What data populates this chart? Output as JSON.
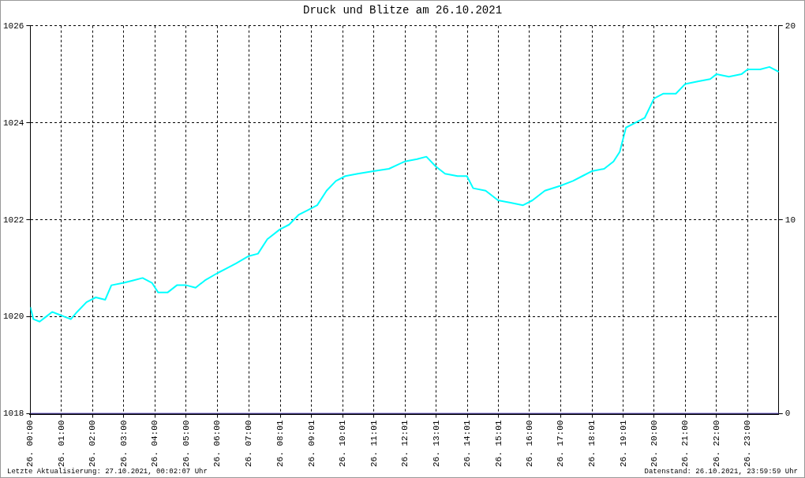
{
  "chart_data": {
    "type": "line",
    "title": "Druck und Blitze am 26.10.2021",
    "xlim": [
      "2021-10-26T00:00",
      "2021-10-27T00:00"
    ],
    "xticks": [
      {
        "value": "2021-10-26T00:00",
        "label": "26. 00:00"
      },
      {
        "value": "2021-10-26T01:00",
        "label": "26. 01:00"
      },
      {
        "value": "2021-10-26T02:00",
        "label": "26. 02:00"
      },
      {
        "value": "2021-10-26T03:00",
        "label": "26. 03:00"
      },
      {
        "value": "2021-10-26T04:00",
        "label": "26. 04:00"
      },
      {
        "value": "2021-10-26T05:00",
        "label": "26. 05:00"
      },
      {
        "value": "2021-10-26T06:00",
        "label": "26. 06:00"
      },
      {
        "value": "2021-10-26T07:00",
        "label": "26. 07:00"
      },
      {
        "value": "2021-10-26T08:01",
        "label": "26. 08:01"
      },
      {
        "value": "2021-10-26T09:01",
        "label": "26. 09:01"
      },
      {
        "value": "2021-10-26T10:01",
        "label": "26. 10:01"
      },
      {
        "value": "2021-10-26T11:01",
        "label": "26. 11:01"
      },
      {
        "value": "2021-10-26T12:01",
        "label": "26. 12:01"
      },
      {
        "value": "2021-10-26T13:01",
        "label": "26. 13:01"
      },
      {
        "value": "2021-10-26T14:01",
        "label": "26. 14:01"
      },
      {
        "value": "2021-10-26T15:01",
        "label": "26. 15:01"
      },
      {
        "value": "2021-10-26T16:00",
        "label": "26. 16:00"
      },
      {
        "value": "2021-10-26T17:00",
        "label": "26. 17:00"
      },
      {
        "value": "2021-10-26T18:01",
        "label": "26. 18:01"
      },
      {
        "value": "2021-10-26T19:01",
        "label": "26. 19:01"
      },
      {
        "value": "2021-10-26T20:00",
        "label": "26. 20:00"
      },
      {
        "value": "2021-10-26T21:00",
        "label": "26. 21:00"
      },
      {
        "value": "2021-10-26T22:00",
        "label": "26. 22:00"
      },
      {
        "value": "2021-10-26T23:00",
        "label": "26. 23:00"
      }
    ],
    "ylim": [
      1018,
      1026
    ],
    "yticks": [
      1018,
      1020,
      1022,
      1024,
      1026
    ],
    "y2lim": [
      0,
      20
    ],
    "y2ticks": [
      0,
      10,
      20
    ],
    "grid": true,
    "legend": false,
    "marker": "none",
    "line_style": "solid",
    "series": [
      {
        "color": "#00ffff",
        "x": [
          "2021-10-26T00:00",
          "2021-10-26T00:06",
          "2021-10-26T00:18",
          "2021-10-26T00:30",
          "2021-10-26T00:42",
          "2021-10-26T00:54",
          "2021-10-26T01:06",
          "2021-10-26T01:18",
          "2021-10-26T01:30",
          "2021-10-26T01:48",
          "2021-10-26T02:06",
          "2021-10-26T02:24",
          "2021-10-26T02:36",
          "2021-10-26T03:00",
          "2021-10-26T03:18",
          "2021-10-26T03:36",
          "2021-10-26T03:54",
          "2021-10-26T04:06",
          "2021-10-26T04:24",
          "2021-10-26T04:42",
          "2021-10-26T05:00",
          "2021-10-26T05:18",
          "2021-10-26T05:36",
          "2021-10-26T06:00",
          "2021-10-26T06:18",
          "2021-10-26T06:36",
          "2021-10-26T07:00",
          "2021-10-26T07:18",
          "2021-10-26T07:36",
          "2021-10-26T08:00",
          "2021-10-26T08:18",
          "2021-10-26T08:36",
          "2021-10-26T08:54",
          "2021-10-26T09:12",
          "2021-10-26T09:30",
          "2021-10-26T09:48",
          "2021-10-26T10:06",
          "2021-10-26T10:30",
          "2021-10-26T11:00",
          "2021-10-26T11:30",
          "2021-10-26T12:00",
          "2021-10-26T12:24",
          "2021-10-26T12:42",
          "2021-10-26T13:00",
          "2021-10-26T13:18",
          "2021-10-26T13:42",
          "2021-10-26T14:00",
          "2021-10-26T14:12",
          "2021-10-26T14:36",
          "2021-10-26T15:00",
          "2021-10-26T15:24",
          "2021-10-26T15:48",
          "2021-10-26T16:06",
          "2021-10-26T16:30",
          "2021-10-26T17:00",
          "2021-10-26T17:24",
          "2021-10-26T17:42",
          "2021-10-26T18:00",
          "2021-10-26T18:24",
          "2021-10-26T18:42",
          "2021-10-26T18:54",
          "2021-10-26T19:06",
          "2021-10-26T19:24",
          "2021-10-26T19:42",
          "2021-10-26T20:00",
          "2021-10-26T20:18",
          "2021-10-26T20:42",
          "2021-10-26T21:00",
          "2021-10-26T21:24",
          "2021-10-26T21:48",
          "2021-10-26T22:00",
          "2021-10-26T22:24",
          "2021-10-26T22:48",
          "2021-10-26T23:00",
          "2021-10-26T23:24",
          "2021-10-26T23:42",
          "2021-10-27T00:00"
        ],
        "values": [
          1020.2,
          1019.95,
          1019.9,
          1020.0,
          1020.1,
          1020.05,
          1020.0,
          1019.95,
          1020.1,
          1020.3,
          1020.4,
          1020.35,
          1020.65,
          1020.7,
          1020.75,
          1020.8,
          1020.7,
          1020.5,
          1020.5,
          1020.65,
          1020.65,
          1020.6,
          1020.75,
          1020.9,
          1021.0,
          1021.1,
          1021.25,
          1021.3,
          1021.6,
          1021.8,
          1021.9,
          1022.1,
          1022.2,
          1022.3,
          1022.6,
          1022.8,
          1022.9,
          1022.95,
          1023.0,
          1023.05,
          1023.2,
          1023.25,
          1023.3,
          1023.1,
          1022.95,
          1022.9,
          1022.9,
          1022.65,
          1022.6,
          1022.4,
          1022.35,
          1022.3,
          1022.4,
          1022.6,
          1022.7,
          1022.8,
          1022.9,
          1023.0,
          1023.05,
          1023.2,
          1023.4,
          1023.9,
          1024.0,
          1024.1,
          1024.5,
          1024.6,
          1024.6,
          1024.8,
          1024.85,
          1024.9,
          1025.0,
          1024.95,
          1025.0,
          1025.1,
          1025.1,
          1025.15,
          1025.05
        ]
      },
      {
        "color": "#6a5acd",
        "axis": "y2",
        "x": [
          "2021-10-26T00:00",
          "2021-10-27T00:00"
        ],
        "values": [
          0,
          0
        ]
      }
    ],
    "annotations": [
      "Letzte Aktualisierung: 27.10.2021, 00:02:07 Uhr",
      "Datenstand: 26.10.2021, 23:59:59 Uhr"
    ]
  }
}
